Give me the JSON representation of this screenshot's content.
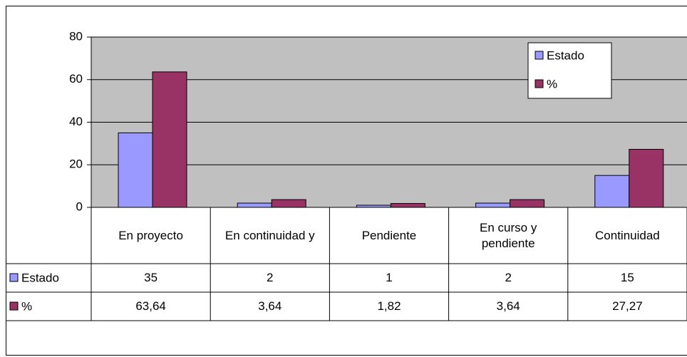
{
  "chart_data": {
    "type": "bar",
    "categories": [
      "En proyecto",
      "En continuidad y",
      "Pendiente",
      "En curso y pendiente",
      "Continuidad"
    ],
    "series": [
      {
        "name": "Estado",
        "color": "#9999ff",
        "values": [
          35,
          2,
          1,
          2,
          15
        ]
      },
      {
        "name": "%",
        "color": "#993366",
        "values": [
          63.64,
          3.64,
          1.82,
          3.64,
          27.27
        ],
        "value_labels": [
          "63,64",
          "3,64",
          "1,82",
          "3,64",
          "27,27"
        ]
      }
    ],
    "ylim": [
      0,
      80
    ],
    "yticks": [
      0,
      20,
      40,
      60,
      80
    ],
    "grid": true,
    "legend": "top-right",
    "data_table": true
  }
}
